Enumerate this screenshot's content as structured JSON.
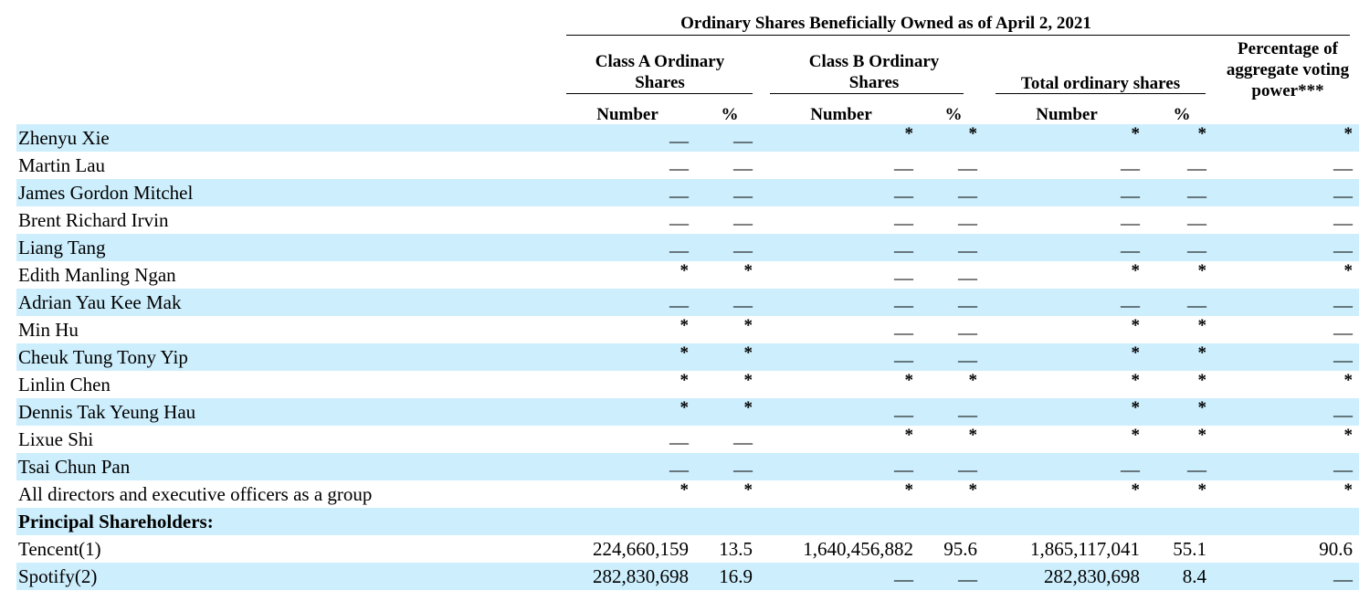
{
  "header": {
    "title": "Ordinary Shares Beneficially Owned as of April 2, 2021",
    "class_a": "Class A Ordinary Shares",
    "class_b": "Class B Ordinary Shares",
    "total": "Total ordinary shares",
    "voting": "Percentage of aggregate voting power***",
    "number_label": "Number",
    "pct_label": "%"
  },
  "symbols": {
    "dash": "—",
    "star": "*"
  },
  "rows": [
    {
      "name": "Zhenyu Xie",
      "cells": [
        "—",
        "—",
        "*",
        "*",
        "*",
        "*",
        "*"
      ]
    },
    {
      "name": "Martin Lau",
      "cells": [
        "—",
        "—",
        "—",
        "—",
        "—",
        "—",
        "—"
      ]
    },
    {
      "name": "James Gordon Mitchel",
      "cells": [
        "—",
        "—",
        "—",
        "—",
        "—",
        "—",
        "—"
      ]
    },
    {
      "name": "Brent Richard Irvin",
      "cells": [
        "—",
        "—",
        "—",
        "—",
        "—",
        "—",
        "—"
      ]
    },
    {
      "name": "Liang Tang",
      "cells": [
        "—",
        "—",
        "—",
        "—",
        "—",
        "—",
        "—"
      ]
    },
    {
      "name": "Edith Manling Ngan",
      "cells": [
        "*",
        "*",
        "—",
        "—",
        "*",
        "*",
        "*"
      ]
    },
    {
      "name": "Adrian Yau Kee Mak",
      "cells": [
        "—",
        "—",
        "—",
        "—",
        "—",
        "—",
        "—"
      ]
    },
    {
      "name": "Min Hu",
      "cells": [
        "*",
        "*",
        "—",
        "—",
        "*",
        "*",
        "—"
      ]
    },
    {
      "name": "Cheuk Tung Tony Yip",
      "cells": [
        "*",
        "*",
        "—",
        "—",
        "*",
        "*",
        "—"
      ]
    },
    {
      "name": "Linlin Chen",
      "cells": [
        "*",
        "*",
        "*",
        "*",
        "*",
        "*",
        "*"
      ]
    },
    {
      "name": "Dennis Tak Yeung Hau",
      "cells": [
        "*",
        "*",
        "—",
        "—",
        "*",
        "*",
        "—"
      ]
    },
    {
      "name": "Lixue Shi",
      "cells": [
        "—",
        "—",
        "*",
        "*",
        "*",
        "*",
        "*"
      ]
    },
    {
      "name": "Tsai Chun Pan",
      "cells": [
        "—",
        "—",
        "—",
        "—",
        "—",
        "—",
        "—"
      ]
    },
    {
      "name": "All directors and executive officers as a group",
      "cells": [
        "*",
        "*",
        "*",
        "*",
        "*",
        "*",
        "*"
      ]
    },
    {
      "name": "Principal Shareholders:",
      "section": true,
      "cells": [
        "",
        "",
        "",
        "",
        "",
        "",
        ""
      ]
    },
    {
      "name": "Tencent(1)",
      "cells": [
        "224,660,159",
        "13.5",
        "1,640,456,882",
        "95.6",
        "1,865,117,041",
        "55.1",
        "90.6"
      ]
    },
    {
      "name": "Spotify(2)",
      "cells": [
        "282,830,698",
        "16.9",
        "—",
        "—",
        "282,830,698",
        "8.4",
        "—"
      ]
    }
  ]
}
